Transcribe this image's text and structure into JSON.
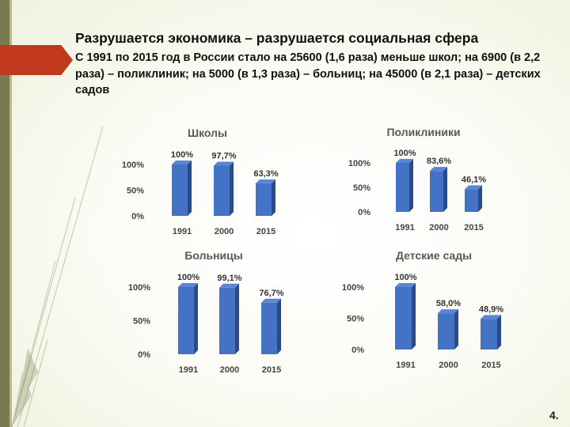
{
  "slide": {
    "title": "Разрушается экономика – разрушается социальная сфера",
    "subtitle": "С 1991 по 2015 год в России стало на 25600 (1,6 раза) меньше школ; на 6900 (в 2,2 раза) – поликлиник; на 5000 (в 1,3 раза) – больниц; на 45000 (в 2,1 раза) – детских садов",
    "page_number": "4.",
    "bar_color": "#4472c4"
  },
  "chart_data": [
    {
      "type": "bar",
      "title": "Школы",
      "categories": [
        "1991",
        "2000",
        "2015"
      ],
      "values": [
        100,
        97.7,
        63.3
      ],
      "data_labels": [
        "100%",
        "97,7%",
        "63,3%"
      ],
      "ylim": [
        0,
        100
      ],
      "yticks": [
        "0%",
        "50%",
        "100%"
      ],
      "xlabel": "",
      "ylabel": ""
    },
    {
      "type": "bar",
      "title": "Поликлиники",
      "categories": [
        "1991",
        "2000",
        "2015"
      ],
      "values": [
        100,
        83.6,
        46.1
      ],
      "data_labels": [
        "100%",
        "83,6%",
        "46,1%"
      ],
      "ylim": [
        0,
        100
      ],
      "yticks": [
        "0%",
        "50%",
        "100%"
      ],
      "xlabel": "",
      "ylabel": ""
    },
    {
      "type": "bar",
      "title": "Больницы",
      "categories": [
        "1991",
        "2000",
        "2015"
      ],
      "values": [
        100,
        99.1,
        76.7
      ],
      "data_labels": [
        "100%",
        "99,1%",
        "76,7%"
      ],
      "ylim": [
        0,
        100
      ],
      "yticks": [
        "0%",
        "50%",
        "100%"
      ],
      "xlabel": "",
      "ylabel": ""
    },
    {
      "type": "bar",
      "title": "Детские сады",
      "categories": [
        "1991",
        "2000",
        "2015"
      ],
      "values": [
        100,
        58.0,
        48.9
      ],
      "data_labels": [
        "100%",
        "58,0%",
        "48,9%"
      ],
      "ylim": [
        0,
        100
      ],
      "yticks": [
        "0%",
        "50%",
        "100%"
      ],
      "xlabel": "",
      "ylabel": ""
    }
  ]
}
